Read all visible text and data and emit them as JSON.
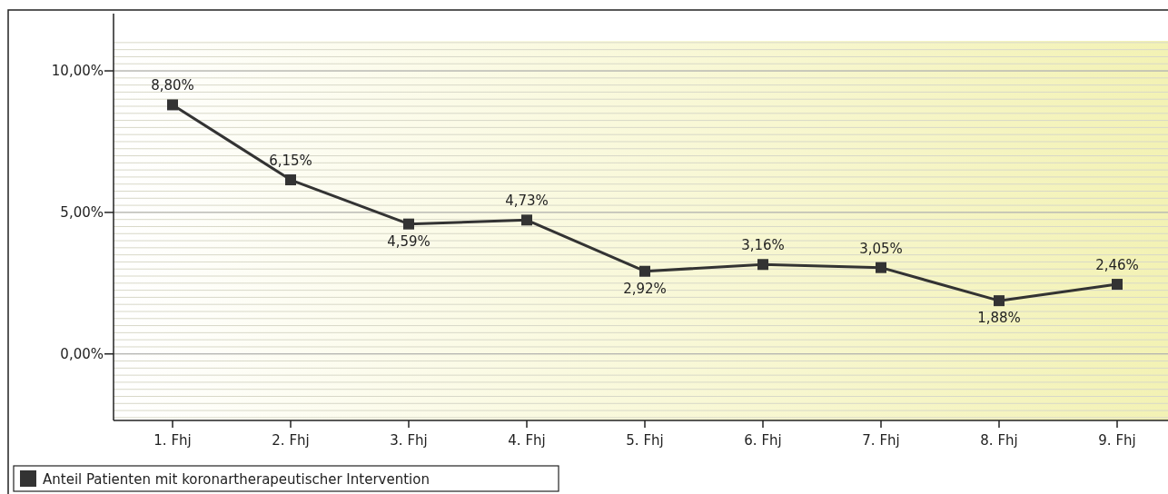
{
  "chart_data": {
    "type": "line",
    "categories": [
      "1. Fhj",
      "2. Fhj",
      "3. Fhj",
      "4. Fhj",
      "5. Fhj",
      "6. Fhj",
      "7. Fhj",
      "8. Fhj",
      "9. Fhj"
    ],
    "series": [
      {
        "name": "Anteil Patienten mit koronartherapeutischer Intervention",
        "color": "#333333",
        "values": [
          8.8,
          6.15,
          4.59,
          4.73,
          2.92,
          3.16,
          3.05,
          1.88,
          2.46
        ],
        "value_labels": [
          "8,80%",
          "6,15%",
          "4,59%",
          "4,73%",
          "2,92%",
          "3,16%",
          "3,05%",
          "1,88%",
          "2,46%"
        ]
      }
    ],
    "ylim": [
      -2.35,
      11.06
    ],
    "yticks": [
      {
        "value": 0,
        "label": "0,00%"
      },
      {
        "value": 5,
        "label": "5,00%"
      },
      {
        "value": 10,
        "label": "10,00%"
      }
    ],
    "grid": "y",
    "legend": "bottom left",
    "marker": "square",
    "line_style": "solid"
  }
}
